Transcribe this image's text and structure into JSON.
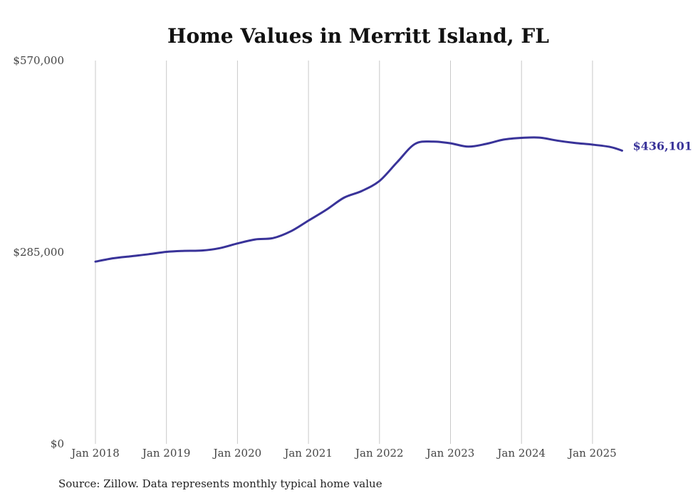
{
  "chart_data": {
    "type": "line",
    "title": "Home Values in Merritt Island, FL",
    "xlabel": "",
    "ylabel": "",
    "ylim": [
      0,
      570000
    ],
    "y_ticks": [
      "$0",
      "$285,000",
      "$570,000"
    ],
    "y_tick_values": [
      0,
      285000,
      570000
    ],
    "x_ticks": [
      "Jan 2018",
      "Jan 2019",
      "Jan 2020",
      "Jan 2021",
      "Jan 2022",
      "Jan 2023",
      "Jan 2024",
      "Jan 2025"
    ],
    "x_tick_dates": [
      "2018-01",
      "2019-01",
      "2020-01",
      "2021-01",
      "2022-01",
      "2023-01",
      "2024-01",
      "2025-01"
    ],
    "grid": "vertical",
    "series": [
      {
        "color": "#393399",
        "points": [
          {
            "x": "2018-01",
            "y": 271000
          },
          {
            "x": "2018-04",
            "y": 276000
          },
          {
            "x": "2018-07",
            "y": 279000
          },
          {
            "x": "2018-10",
            "y": 282000
          },
          {
            "x": "2019-01",
            "y": 285500
          },
          {
            "x": "2019-04",
            "y": 287000
          },
          {
            "x": "2019-07",
            "y": 287500
          },
          {
            "x": "2019-10",
            "y": 291000
          },
          {
            "x": "2020-01",
            "y": 298000
          },
          {
            "x": "2020-04",
            "y": 304000
          },
          {
            "x": "2020-07",
            "y": 306000
          },
          {
            "x": "2020-10",
            "y": 316000
          },
          {
            "x": "2021-01",
            "y": 332000
          },
          {
            "x": "2021-04",
            "y": 348000
          },
          {
            "x": "2021-07",
            "y": 366000
          },
          {
            "x": "2021-10",
            "y": 376000
          },
          {
            "x": "2022-01",
            "y": 391000
          },
          {
            "x": "2022-04",
            "y": 419000
          },
          {
            "x": "2022-07",
            "y": 446000
          },
          {
            "x": "2022-10",
            "y": 449500
          },
          {
            "x": "2023-01",
            "y": 447000
          },
          {
            "x": "2023-04",
            "y": 442000
          },
          {
            "x": "2023-07",
            "y": 446000
          },
          {
            "x": "2023-10",
            "y": 452500
          },
          {
            "x": "2024-01",
            "y": 455000
          },
          {
            "x": "2024-04",
            "y": 455500
          },
          {
            "x": "2024-07",
            "y": 451000
          },
          {
            "x": "2024-10",
            "y": 447500
          },
          {
            "x": "2025-01",
            "y": 445000
          },
          {
            "x": "2025-04",
            "y": 441500
          },
          {
            "x": "2025-06",
            "y": 436101
          }
        ]
      }
    ],
    "end_label": "$436,101",
    "source": "Source: Zillow. Data represents monthly typical home value"
  }
}
